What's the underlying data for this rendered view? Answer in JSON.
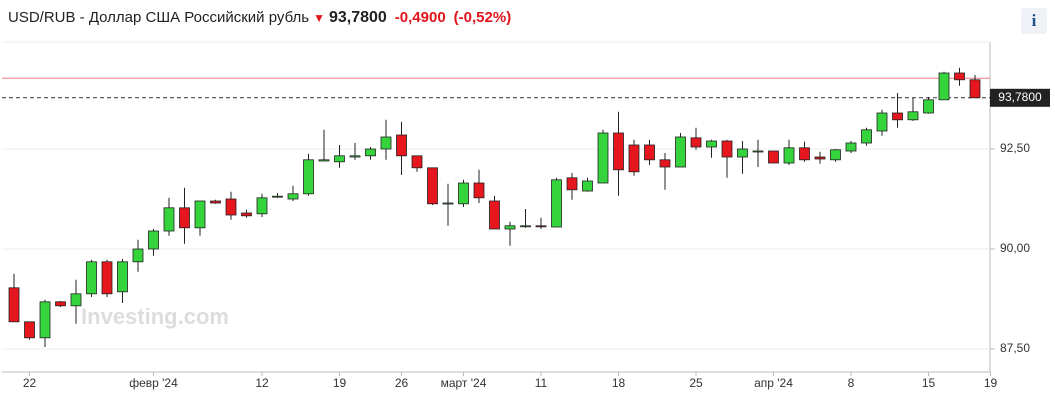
{
  "header": {
    "title": "USD/RUB - Доллар США Российский рубль",
    "price": "93,7800",
    "change": "-0,4900",
    "change_pct": "(-0,52%)",
    "info": "i"
  },
  "chart_data": {
    "type": "candlestick",
    "watermark": "Investing.com",
    "categories": [
      null,
      "22",
      null,
      null,
      null,
      null,
      null,
      null,
      null,
      "февр '24",
      null,
      null,
      null,
      null,
      null,
      null,
      "12",
      null,
      null,
      null,
      null,
      "19",
      null,
      null,
      null,
      "26",
      null,
      null,
      null,
      "март '24",
      null,
      null,
      null,
      null,
      "11",
      null,
      null,
      null,
      null,
      "18",
      null,
      null,
      null,
      null,
      "25",
      null,
      null,
      null,
      null,
      "апр '24",
      null,
      null,
      null,
      null,
      "8",
      null,
      null,
      null,
      null,
      "15",
      null,
      null,
      null,
      "19"
    ],
    "open": [
      89.03,
      88.18,
      87.78,
      88.68,
      88.58,
      88.88,
      89.68,
      88.93,
      89.68,
      90.0,
      90.45,
      91.03,
      90.53,
      91.2,
      91.25,
      90.9,
      90.88,
      91.3,
      91.25,
      91.38,
      92.2,
      92.18,
      92.3,
      92.33,
      92.5,
      92.85,
      92.33,
      92.03,
      91.13,
      91.13,
      91.65,
      91.2,
      90.5,
      90.57,
      90.58,
      90.55,
      91.78,
      91.45,
      91.65,
      92.9,
      92.6,
      92.6,
      92.23,
      92.05,
      92.78,
      92.55,
      92.7,
      92.3,
      92.43,
      92.45,
      92.15,
      92.53,
      92.3,
      92.23,
      92.45,
      92.65,
      92.95,
      93.4,
      93.23,
      93.4,
      93.73,
      94.4,
      94.23,
      null
    ],
    "high": [
      89.38,
      88.18,
      88.73,
      88.7,
      89.23,
      89.73,
      89.73,
      89.75,
      90.23,
      90.5,
      91.28,
      91.53,
      91.2,
      91.23,
      91.43,
      90.98,
      91.38,
      91.4,
      91.58,
      92.38,
      92.98,
      92.6,
      92.65,
      92.55,
      93.23,
      93.18,
      92.33,
      92.03,
      91.63,
      91.73,
      91.98,
      91.33,
      90.68,
      91.0,
      90.78,
      91.78,
      91.9,
      91.78,
      92.98,
      93.43,
      92.73,
      92.73,
      92.4,
      92.9,
      93.03,
      92.73,
      92.73,
      92.7,
      92.73,
      92.45,
      92.73,
      92.68,
      92.43,
      92.5,
      92.7,
      93.03,
      93.48,
      93.9,
      93.78,
      93.8,
      94.43,
      94.53,
      94.35,
      null
    ],
    "low": [
      88.18,
      87.73,
      87.55,
      88.55,
      88.13,
      88.8,
      88.8,
      88.65,
      89.43,
      89.83,
      90.33,
      90.13,
      90.33,
      91.13,
      90.73,
      90.78,
      90.8,
      91.28,
      91.2,
      91.33,
      92.2,
      92.03,
      92.23,
      92.23,
      92.23,
      91.85,
      91.93,
      91.1,
      90.58,
      91.05,
      91.15,
      90.5,
      90.08,
      90.53,
      90.5,
      90.55,
      91.23,
      91.43,
      91.65,
      91.33,
      91.83,
      92.1,
      91.48,
      92.05,
      92.48,
      92.28,
      91.78,
      91.88,
      92.05,
      92.15,
      92.1,
      92.18,
      92.13,
      92.18,
      92.4,
      92.58,
      92.83,
      93.03,
      93.2,
      93.38,
      93.73,
      94.08,
      93.78,
      null
    ],
    "close": [
      88.18,
      87.78,
      88.68,
      88.58,
      88.88,
      89.68,
      88.88,
      89.68,
      90.0,
      90.45,
      91.03,
      90.53,
      91.2,
      91.15,
      90.85,
      90.83,
      91.28,
      91.32,
      91.38,
      92.23,
      92.23,
      92.33,
      92.33,
      92.5,
      92.8,
      92.33,
      92.03,
      91.13,
      91.15,
      91.65,
      91.28,
      90.5,
      90.58,
      90.58,
      90.56,
      91.73,
      91.48,
      91.7,
      92.9,
      91.98,
      91.93,
      92.23,
      92.05,
      92.8,
      92.55,
      92.7,
      92.3,
      92.5,
      92.45,
      92.15,
      92.53,
      92.23,
      92.25,
      92.48,
      92.65,
      92.98,
      93.4,
      93.23,
      93.43,
      93.73,
      94.4,
      94.23,
      93.78,
      null
    ],
    "up_color": "#36d43c",
    "down_color": "#e5161d",
    "ylim": [
      86.925,
      95.175
    ],
    "yticks": [
      {
        "value": 87.5,
        "label": "87,50"
      },
      {
        "value": 90,
        "label": "90,00"
      },
      {
        "value": 92.5,
        "label": "92,50"
      }
    ],
    "grid": true,
    "previous_close": 94.27,
    "previous_close_color": "#e88080",
    "price_line": {
      "value": 93.78,
      "label": "93,7800"
    }
  }
}
